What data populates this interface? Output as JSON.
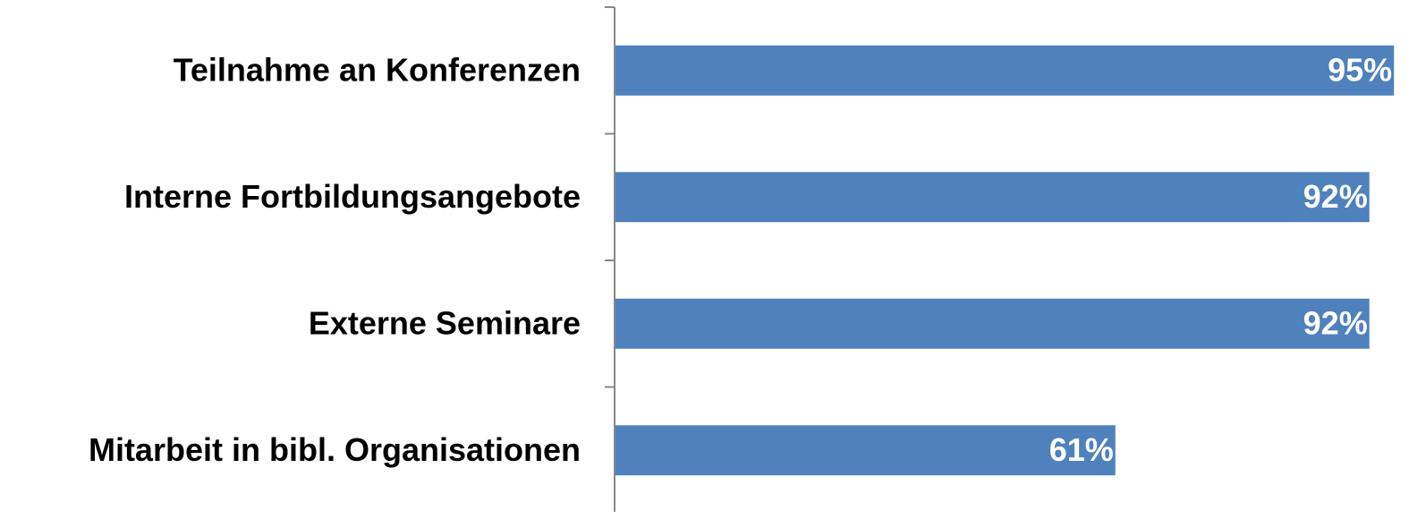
{
  "chart_data": {
    "type": "barh",
    "categories": [
      "Teilnahme an Konferenzen",
      "Interne Fortbildungsangebote",
      "Externe Seminare",
      "Mitarbeit in bibl. Organisationen"
    ],
    "values": [
      95,
      92,
      92,
      61
    ],
    "value_labels": [
      "95%",
      "92%",
      "92%",
      "61%"
    ],
    "color": "#4f81bd",
    "xlim": [
      0,
      100
    ]
  }
}
